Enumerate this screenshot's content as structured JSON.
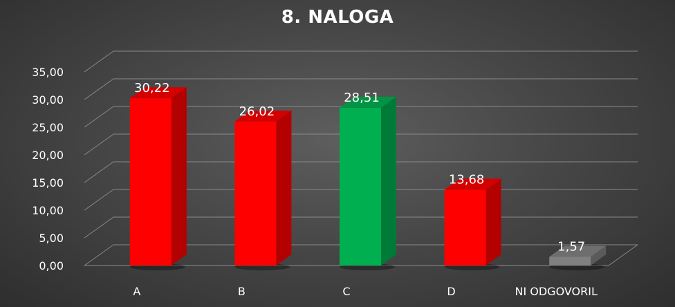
{
  "chart_data": {
    "type": "bar",
    "title": "8. NALOGA",
    "categories": [
      "A",
      "B",
      "C",
      "D",
      "NI ODGOVORIL"
    ],
    "values": [
      30.22,
      26.02,
      28.51,
      13.68,
      1.57
    ],
    "value_labels": [
      "30,22",
      "26,02",
      "28,51",
      "13,68",
      "1,57"
    ],
    "ytick_labels": [
      "0,00",
      "5,00",
      "10,00",
      "15,00",
      "20,00",
      "25,00",
      "30,00",
      "35,00"
    ],
    "ylim": [
      0,
      35
    ],
    "ystep": 5,
    "grid": true,
    "legend": "none",
    "xlabel": "",
    "ylabel": "",
    "bar_colors": [
      "#ff0000",
      "#ff0000",
      "#00b050",
      "#ff0000",
      "#808080"
    ],
    "bar_side_colors": [
      "#b30000",
      "#b30000",
      "#007a37",
      "#b30000",
      "#5a5a5a"
    ],
    "bar_top_colors": [
      "#d40000",
      "#d40000",
      "#009444",
      "#d40000",
      "#6e6e6e"
    ]
  }
}
